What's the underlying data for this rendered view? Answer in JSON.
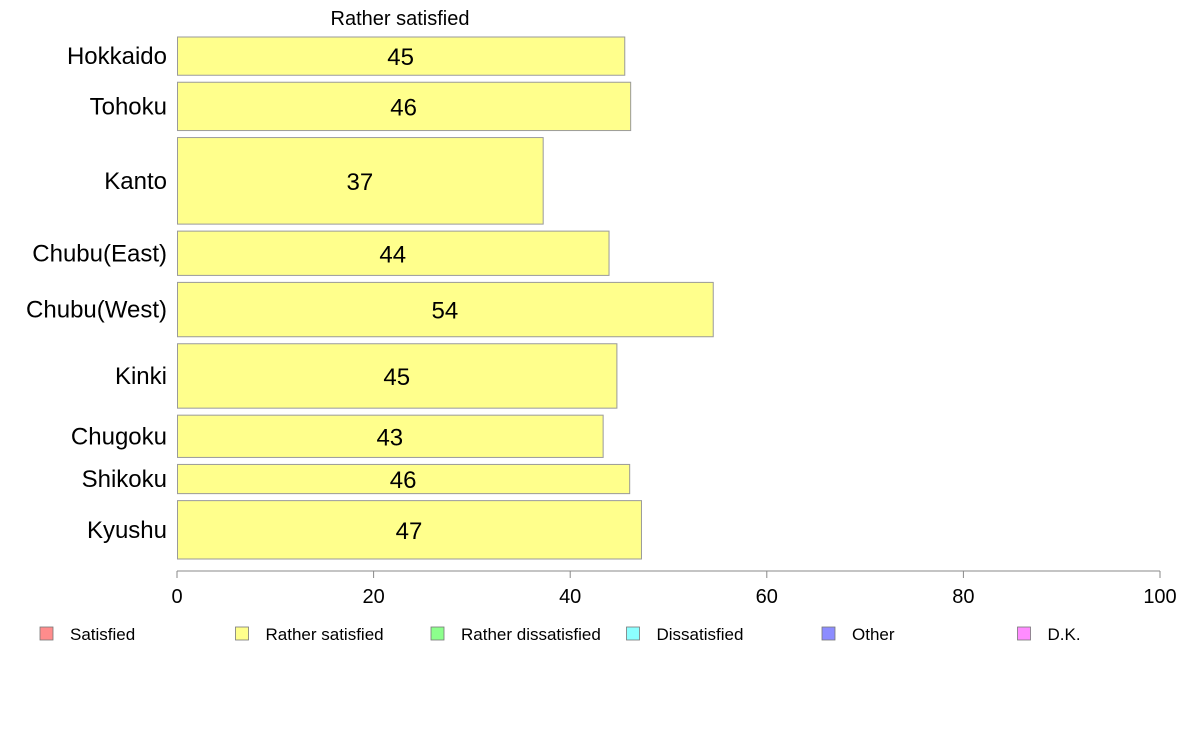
{
  "chart_data": {
    "type": "bar",
    "orientation": "horizontal",
    "title": "Rather satisfied",
    "categories": [
      "Hokkaido",
      "Tohoku",
      "Kanto",
      "Chubu(East)",
      "Chubu(West)",
      "Kinki",
      "Chugoku",
      "Shikoku",
      "Kyushu"
    ],
    "values": [
      45,
      46,
      37,
      44,
      54,
      45,
      43,
      46,
      47
    ],
    "precise_values": [
      45.5,
      46.1,
      37.2,
      43.9,
      54.5,
      44.7,
      43.3,
      46.0,
      47.2
    ],
    "relative_sample_size": [
      38,
      48,
      86,
      44,
      54,
      64,
      42,
      29,
      58
    ],
    "xlim": [
      0,
      100
    ],
    "xticks": [
      0,
      20,
      40,
      60,
      80,
      100
    ],
    "grid": false,
    "legend": {
      "position": "bottom",
      "entries": [
        "Satisfied",
        "Rather satisfied",
        "Rather dissatisfied",
        "Dissatisfied",
        "Other",
        "D.K."
      ]
    },
    "colors": {
      "Satisfied": "#ff8c8c",
      "Rather satisfied": "#ffff8c",
      "Rather dissatisfied": "#8cff8c",
      "Dissatisfied": "#8cffff",
      "Other": "#8c8cff",
      "D.K.": "#ff8cff"
    },
    "active_series": "Rather satisfied",
    "bar_stroke": "#9a9a9a",
    "axis_color": "#888888",
    "text_color": "#000000"
  }
}
